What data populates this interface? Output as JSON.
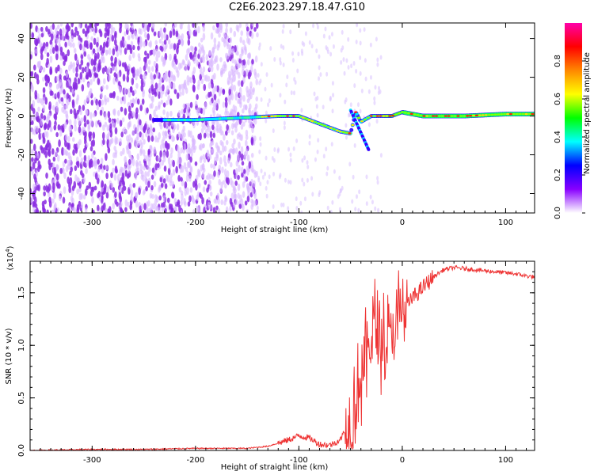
{
  "title": "C2E6.2023.297.18.47.G10",
  "chart_data": [
    {
      "type": "heatmap",
      "title": "C2E6.2023.297.18.47.G10",
      "xlabel": "Height of straight line (km)",
      "ylabel": "Frequency (Hz)",
      "xlim": [
        -360,
        128
      ],
      "ylim": [
        -50,
        48
      ],
      "xticks": [
        -300,
        -200,
        -100,
        0,
        100
      ],
      "yticks": [
        -40,
        -20,
        0,
        20,
        40
      ],
      "colorbar": {
        "label": "Normalized spectral amplitude",
        "range": [
          0,
          1
        ],
        "ticks": [
          "0.0",
          "0.2",
          "0.4",
          "0.6",
          "0.8"
        ],
        "colors": [
          "#ffffff",
          "#8800ff",
          "#0000ff",
          "#00ffff",
          "#00ff00",
          "#ffff00",
          "#ff8800",
          "#ff0000",
          "#ff00aa"
        ]
      },
      "signal_track": {
        "x": [
          -240,
          -200,
          -160,
          -120,
          -100,
          -90,
          -80,
          -70,
          -60,
          -50,
          -45,
          -40,
          -30,
          -20,
          -10,
          0,
          20,
          60,
          100,
          128
        ],
        "y": [
          -2,
          -2,
          -1,
          0,
          0,
          -2,
          -4,
          -6,
          -8,
          -9,
          2,
          -3,
          0,
          0,
          0,
          2,
          0,
          0,
          1,
          1
        ]
      },
      "noise_floor_extent_km": [
        -360,
        -140
      ]
    },
    {
      "type": "line",
      "xlabel": "Height of straight line (km)",
      "ylabel": "SNR (10 * v/v)",
      "multiplier_label": "(x10",
      "multiplier_exp": "4",
      "xlim": [
        -360,
        128
      ],
      "ylim": [
        0,
        1.8
      ],
      "xticks": [
        -300,
        -200,
        -100,
        0,
        100
      ],
      "yticks": [
        "0.0",
        "0.5",
        "1.0",
        "1.5"
      ],
      "series": [
        {
          "color": "#ee3333",
          "x": [
            -360,
            -300,
            -250,
            -200,
            -150,
            -130,
            -110,
            -100,
            -90,
            -80,
            -70,
            -60,
            -50,
            -45,
            -40,
            -35,
            -30,
            -25,
            -20,
            -15,
            -10,
            -5,
            0,
            10,
            20,
            30,
            40,
            50,
            60,
            80,
            100,
            110,
            120,
            128
          ],
          "y": [
            0.0,
            0.01,
            0.01,
            0.02,
            0.02,
            0.04,
            0.1,
            0.14,
            0.12,
            0.06,
            0.05,
            0.1,
            0.3,
            0.5,
            0.7,
            0.9,
            1.1,
            1.2,
            1.05,
            1.0,
            1.1,
            1.2,
            1.3,
            1.45,
            1.55,
            1.65,
            1.72,
            1.74,
            1.73,
            1.71,
            1.69,
            1.68,
            1.66,
            1.65
          ]
        }
      ]
    }
  ]
}
